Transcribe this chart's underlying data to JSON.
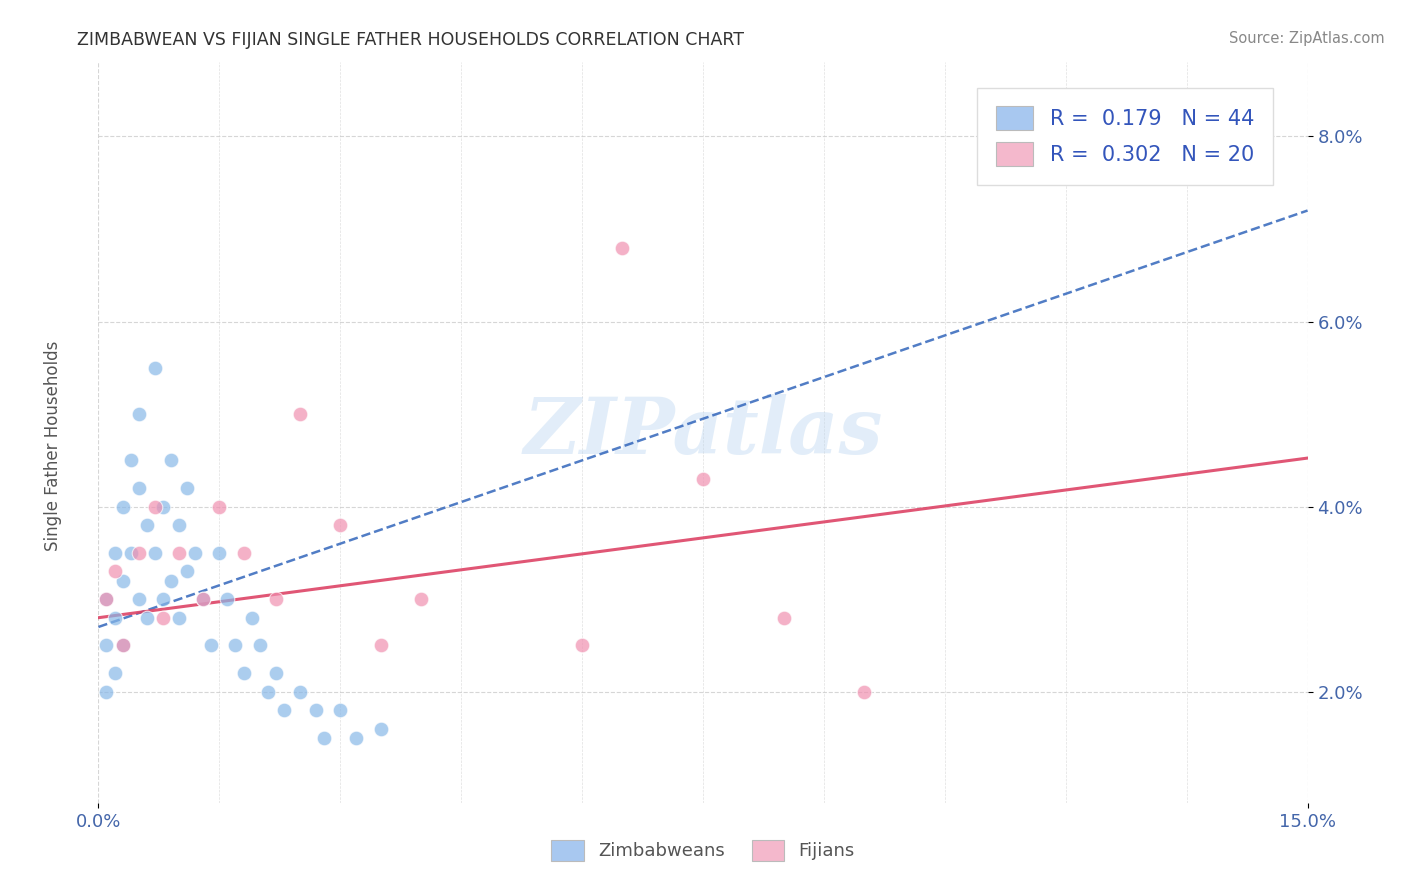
{
  "title": "ZIMBABWEAN VS FIJIAN SINGLE FATHER HOUSEHOLDS CORRELATION CHART",
  "source": "Source: ZipAtlas.com",
  "ylabel": "Single Father Households",
  "xlim": [
    0.0,
    0.15
  ],
  "ylim": [
    0.008,
    0.088
  ],
  "ytick_vals": [
    0.02,
    0.04,
    0.06,
    0.08
  ],
  "legend_labels": [
    "Zimbabweans",
    "Fijians"
  ],
  "legend_R1": "R =  0.179",
  "legend_N1": "N = 44",
  "legend_R2": "R =  0.302",
  "legend_N2": "N = 20",
  "watermark": "ZIPatlas",
  "blue_color": "#a8c8f0",
  "pink_color": "#f4b8cc",
  "blue_line_color": "#3366bb",
  "pink_line_color": "#dd4466",
  "blue_dot_color": "#88b8e8",
  "pink_dot_color": "#f090b0",
  "zimb_x": [
    0.001,
    0.001,
    0.001,
    0.002,
    0.002,
    0.002,
    0.003,
    0.003,
    0.003,
    0.004,
    0.004,
    0.005,
    0.005,
    0.005,
    0.006,
    0.006,
    0.007,
    0.007,
    0.008,
    0.008,
    0.009,
    0.009,
    0.01,
    0.01,
    0.011,
    0.011,
    0.012,
    0.013,
    0.014,
    0.015,
    0.016,
    0.017,
    0.018,
    0.019,
    0.02,
    0.021,
    0.022,
    0.023,
    0.025,
    0.027,
    0.028,
    0.03,
    0.032,
    0.035
  ],
  "zimb_y": [
    0.03,
    0.025,
    0.02,
    0.035,
    0.028,
    0.022,
    0.04,
    0.032,
    0.025,
    0.045,
    0.035,
    0.05,
    0.042,
    0.03,
    0.038,
    0.028,
    0.055,
    0.035,
    0.04,
    0.03,
    0.045,
    0.032,
    0.038,
    0.028,
    0.042,
    0.033,
    0.035,
    0.03,
    0.025,
    0.035,
    0.03,
    0.025,
    0.022,
    0.028,
    0.025,
    0.02,
    0.022,
    0.018,
    0.02,
    0.018,
    0.015,
    0.018,
    0.015,
    0.016
  ],
  "fiji_x": [
    0.001,
    0.002,
    0.003,
    0.005,
    0.007,
    0.008,
    0.01,
    0.013,
    0.015,
    0.018,
    0.022,
    0.025,
    0.03,
    0.035,
    0.04,
    0.06,
    0.065,
    0.075,
    0.085,
    0.095
  ],
  "fiji_y": [
    0.03,
    0.033,
    0.025,
    0.035,
    0.04,
    0.028,
    0.035,
    0.03,
    0.04,
    0.035,
    0.03,
    0.05,
    0.038,
    0.025,
    0.03,
    0.025,
    0.068,
    0.043,
    0.028,
    0.02
  ]
}
